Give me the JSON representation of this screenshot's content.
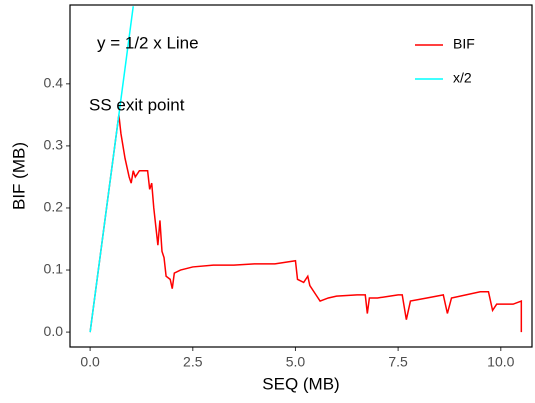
{
  "chart_data": {
    "type": "line",
    "xlabel": "SEQ (MB)",
    "ylabel": "BIF (MB)",
    "annotations": [
      "y = 1/2 x Line",
      "SS exit point"
    ],
    "legend": "top-right",
    "xlim": [
      -0.49,
      10.76
    ],
    "ylim": [
      -0.024,
      0.527
    ],
    "xticks": [
      {
        "value": 0,
        "label": "0.0"
      },
      2.5,
      {
        "value": 5,
        "label": "5.0"
      },
      7.5,
      {
        "value": 10,
        "label": "10.0"
      }
    ],
    "yticks": [
      {
        "value": 0,
        "label": "0.0"
      },
      0.1,
      0.2,
      0.3,
      0.4
    ],
    "series": [
      {
        "name": "BIF",
        "color": "#ff0000",
        "x": [
          0,
          0.3,
          0.6,
          0.7,
          0.75,
          0.85,
          0.95,
          1.0,
          1.05,
          1.1,
          1.2,
          1.4,
          1.45,
          1.5,
          1.55,
          1.6,
          1.65,
          1.7,
          1.75,
          1.8,
          1.85,
          1.95,
          2.0,
          2.05,
          2.2,
          2.5,
          3.0,
          3.5,
          4.0,
          4.5,
          5.0,
          5.05,
          5.2,
          5.3,
          5.35,
          5.5,
          5.6,
          5.8,
          6.0,
          6.5,
          6.7,
          6.75,
          6.8,
          7.0,
          7.3,
          7.5,
          7.6,
          7.7,
          7.8,
          8.2,
          8.6,
          8.7,
          8.8,
          9.5,
          9.7,
          9.8,
          9.9,
          10.3,
          10.5,
          10.5
        ],
        "values": [
          0,
          0.15,
          0.3,
          0.35,
          0.32,
          0.28,
          0.25,
          0.24,
          0.26,
          0.25,
          0.26,
          0.26,
          0.23,
          0.24,
          0.2,
          0.17,
          0.14,
          0.18,
          0.13,
          0.12,
          0.09,
          0.085,
          0.07,
          0.095,
          0.1,
          0.105,
          0.108,
          0.108,
          0.11,
          0.11,
          0.115,
          0.085,
          0.08,
          0.09,
          0.075,
          0.06,
          0.05,
          0.055,
          0.058,
          0.06,
          0.06,
          0.03,
          0.055,
          0.055,
          0.058,
          0.06,
          0.06,
          0.02,
          0.05,
          0.055,
          0.06,
          0.03,
          0.055,
          0.065,
          0.065,
          0.035,
          0.045,
          0.045,
          0.05,
          0.0
        ]
      },
      {
        "name": "x/2",
        "color": "#00ffff",
        "x": [
          0,
          1.05
        ],
        "values": [
          0,
          0.525
        ]
      }
    ]
  }
}
